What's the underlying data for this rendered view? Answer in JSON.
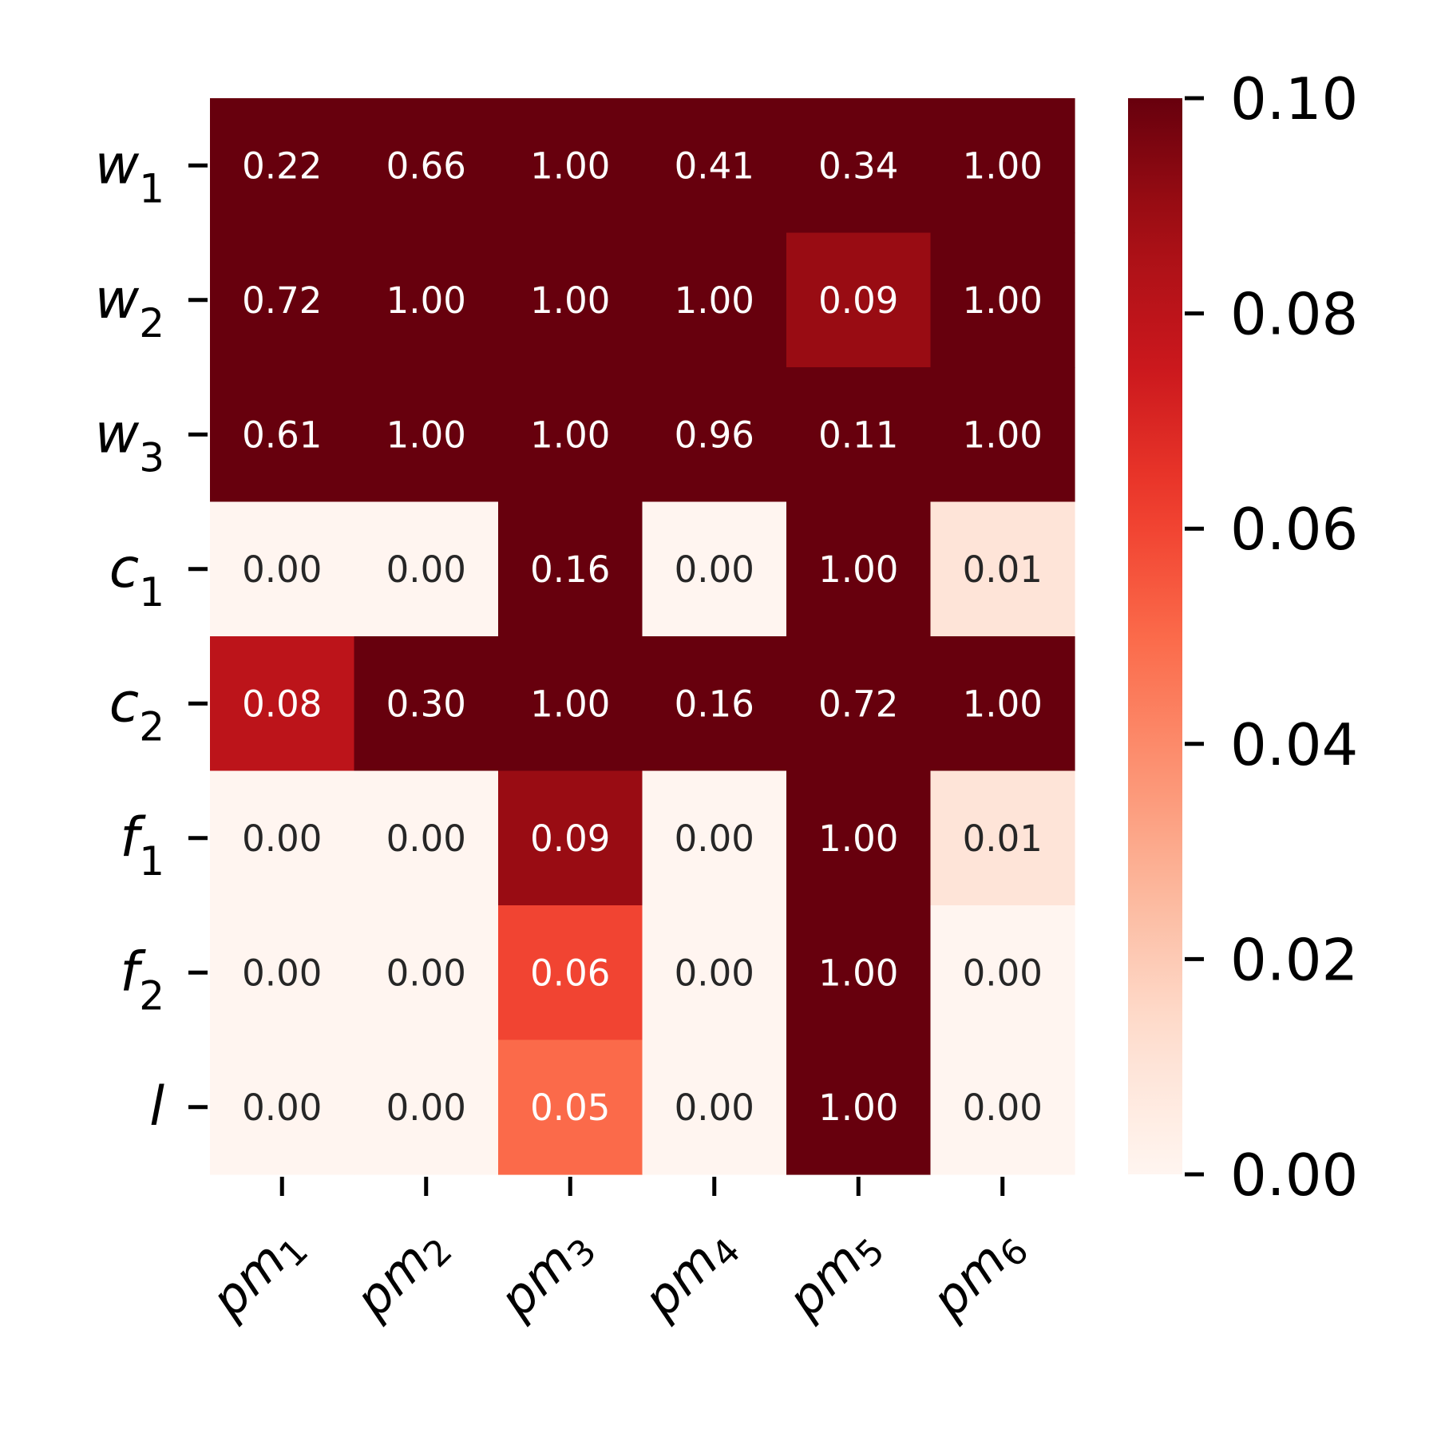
{
  "chart_data": {
    "type": "heatmap",
    "title": "",
    "xlabel": "",
    "ylabel": "",
    "rows": [
      {
        "base": "w",
        "sub": "1"
      },
      {
        "base": "w",
        "sub": "2"
      },
      {
        "base": "w",
        "sub": "3"
      },
      {
        "base": "c",
        "sub": "1"
      },
      {
        "base": "c",
        "sub": "2"
      },
      {
        "base": "f",
        "sub": "1"
      },
      {
        "base": "f",
        "sub": "2"
      },
      {
        "base": "l",
        "sub": ""
      }
    ],
    "columns": [
      {
        "base": "pm",
        "sub": "1"
      },
      {
        "base": "pm",
        "sub": "2"
      },
      {
        "base": "pm",
        "sub": "3"
      },
      {
        "base": "pm",
        "sub": "4"
      },
      {
        "base": "pm",
        "sub": "5"
      },
      {
        "base": "pm",
        "sub": "6"
      }
    ],
    "values": [
      [
        0.22,
        0.66,
        1.0,
        0.41,
        0.34,
        1.0
      ],
      [
        0.72,
        1.0,
        1.0,
        1.0,
        0.09,
        1.0
      ],
      [
        0.61,
        1.0,
        1.0,
        0.96,
        0.11,
        1.0
      ],
      [
        0.0,
        0.0,
        0.16,
        0.0,
        1.0,
        0.01
      ],
      [
        0.08,
        0.3,
        1.0,
        0.16,
        0.72,
        1.0
      ],
      [
        0.0,
        0.0,
        0.09,
        0.0,
        1.0,
        0.01
      ],
      [
        0.0,
        0.0,
        0.06,
        0.0,
        1.0,
        0.0
      ],
      [
        0.0,
        0.0,
        0.05,
        0.0,
        1.0,
        0.0
      ]
    ],
    "value_format_decimals": 2,
    "colormap": "Reds",
    "color_range": [
      0.0,
      0.1
    ],
    "colorbar_ticks": [
      "0.00",
      "0.02",
      "0.04",
      "0.06",
      "0.08",
      "0.10"
    ],
    "colorbar_tick_values": [
      0.0,
      0.02,
      0.04,
      0.06,
      0.08,
      0.1
    ],
    "colors": {
      "text_light": "#ffffff",
      "text_dark": "#262626",
      "axis": "#000000"
    }
  }
}
